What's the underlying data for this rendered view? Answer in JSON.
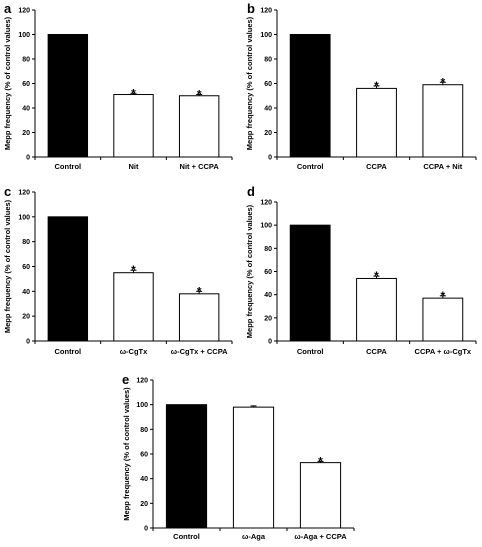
{
  "chart_data": [
    {
      "type": "bar",
      "panel_label": "a",
      "categories": [
        "Control",
        "Nit",
        "Nit + CCPA"
      ],
      "values": [
        100,
        51,
        50
      ],
      "errors": [
        0,
        1,
        1
      ],
      "significance": [
        "",
        "*",
        "*"
      ],
      "bar_colors": [
        "#000000",
        "#ffffff",
        "#ffffff"
      ],
      "ylabel": "Mepp frequency (% of control values)",
      "ylim": [
        0,
        120
      ],
      "yticks": [
        0,
        20,
        40,
        60,
        80,
        100,
        120
      ]
    },
    {
      "type": "bar",
      "panel_label": "b",
      "categories": [
        "Control",
        "CCPA",
        "CCPA + Nit"
      ],
      "values": [
        100,
        56,
        59
      ],
      "errors": [
        0,
        2,
        2
      ],
      "significance": [
        "",
        "*",
        "*"
      ],
      "bar_colors": [
        "#000000",
        "#ffffff",
        "#ffffff"
      ],
      "ylabel": "Mepp frequency (% of control values)",
      "ylim": [
        0,
        120
      ],
      "yticks": [
        0,
        20,
        40,
        60,
        80,
        100,
        120
      ]
    },
    {
      "type": "bar",
      "panel_label": "c",
      "categories": [
        "Control",
        "ω-CgTx",
        "ω-CgTx + CCPA"
      ],
      "values": [
        100,
        55,
        38
      ],
      "errors": [
        0,
        2,
        2
      ],
      "significance": [
        "",
        "*",
        "*"
      ],
      "bar_colors": [
        "#000000",
        "#ffffff",
        "#ffffff"
      ],
      "ylabel": "Mepp frequency (% of control values)",
      "ylim": [
        0,
        120
      ],
      "yticks": [
        0,
        20,
        40,
        60,
        80,
        100,
        120
      ]
    },
    {
      "type": "bar",
      "panel_label": "d",
      "categories": [
        "Control",
        "CCPA",
        "CCPA + ω-CgTx"
      ],
      "values": [
        100,
        54,
        37
      ],
      "errors": [
        0,
        2,
        2
      ],
      "significance": [
        "",
        "*",
        "*"
      ],
      "bar_colors": [
        "#000000",
        "#ffffff",
        "#ffffff"
      ],
      "ylabel": "Mepp frequency (% of control values)",
      "ylim": [
        0,
        120
      ],
      "yticks": [
        0,
        20,
        40,
        60,
        80,
        100,
        120
      ]
    },
    {
      "type": "bar",
      "panel_label": "e",
      "categories": [
        "Control",
        "ω-Aga",
        "ω-Aga + CCPA"
      ],
      "values": [
        100,
        98,
        53
      ],
      "errors": [
        0,
        1,
        1
      ],
      "significance": [
        "",
        "",
        "*"
      ],
      "bar_colors": [
        "#000000",
        "#ffffff",
        "#ffffff"
      ],
      "ylabel": "Mepp frequency (% of control values)",
      "ylim": [
        0,
        120
      ],
      "yticks": [
        0,
        20,
        40,
        60,
        80,
        100,
        120
      ]
    }
  ]
}
